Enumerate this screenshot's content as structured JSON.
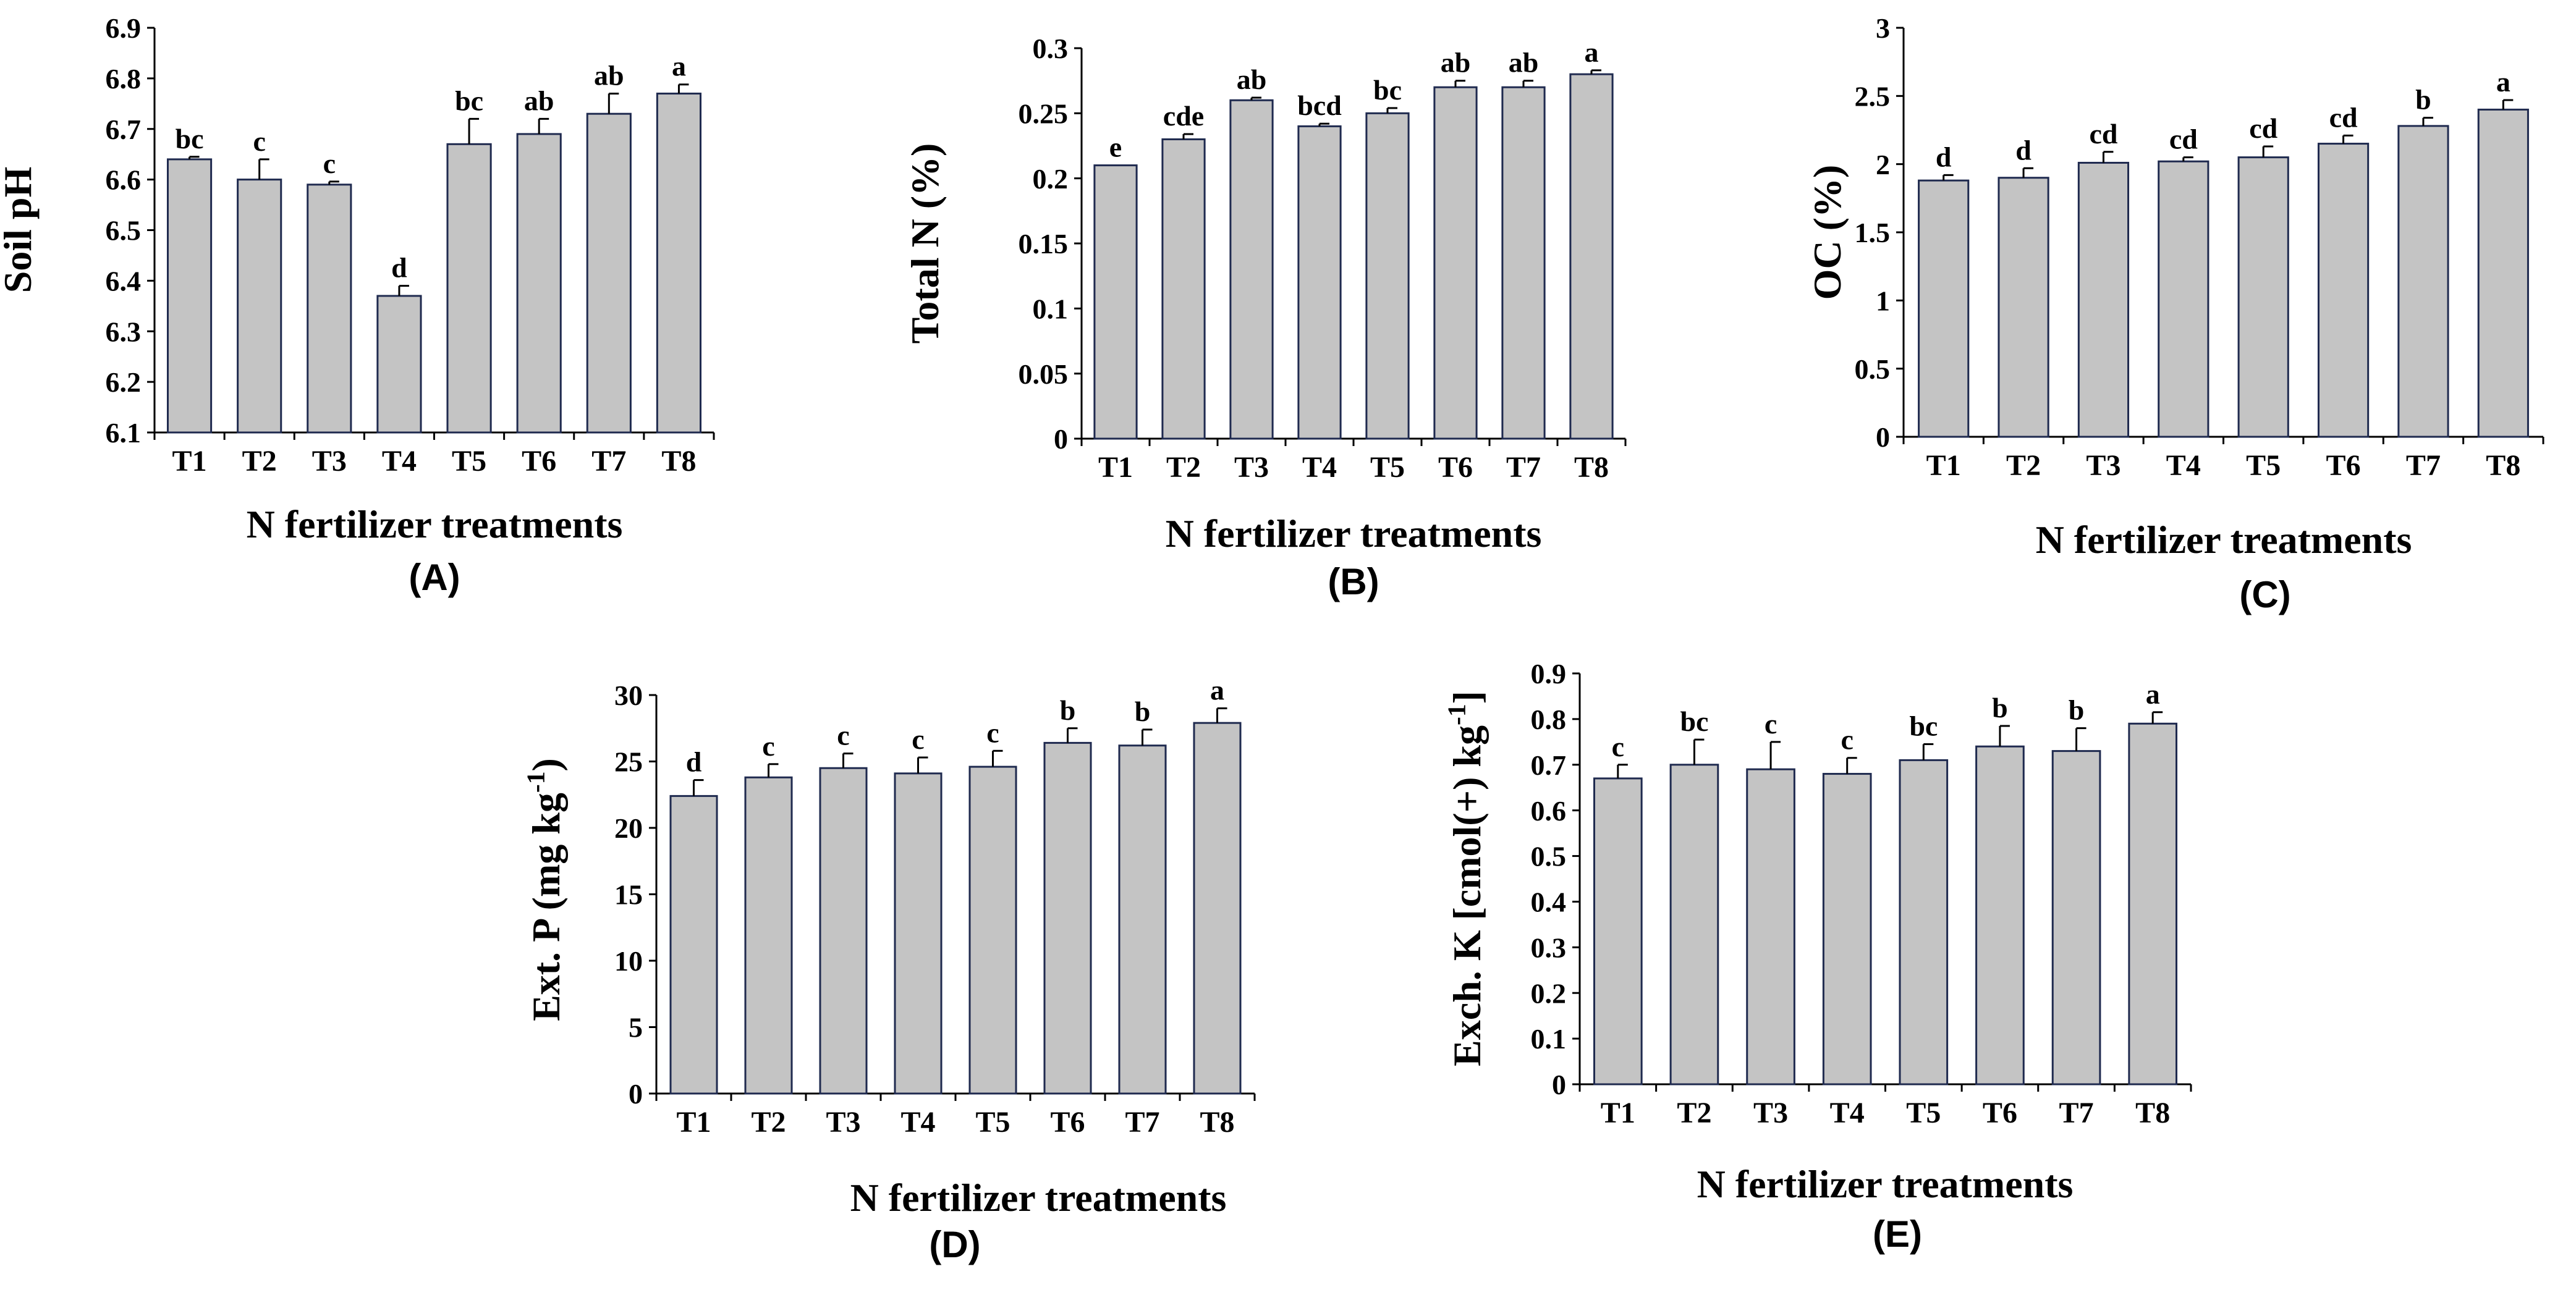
{
  "figure": {
    "bar_fill": "#c4c4c4",
    "bar_stroke": "#1f2a4f",
    "axis_color": "#000000"
  },
  "chart_data": [
    {
      "id": "A",
      "type": "bar",
      "panel_label": "(A)",
      "title": "",
      "xlabel": "N fertilizer treatments",
      "ylabel": "Soil pH",
      "ylabel_sup": "",
      "ylabel_after": "",
      "categories": [
        "T1",
        "T2",
        "T3",
        "T4",
        "T5",
        "T6",
        "T7",
        "T8"
      ],
      "values": [
        6.64,
        6.6,
        6.59,
        6.37,
        6.67,
        6.69,
        6.73,
        6.77
      ],
      "errors": [
        0.005,
        0.04,
        0.006,
        0.02,
        0.05,
        0.03,
        0.04,
        0.018
      ],
      "letters": [
        "bc",
        "c",
        "c",
        "d",
        "bc",
        "ab",
        "ab",
        "a"
      ],
      "ylim": [
        6.1,
        6.9
      ],
      "yticks": [
        "6.1",
        "6.2",
        "6.3",
        "6.4",
        "6.5",
        "6.6",
        "6.7",
        "6.8",
        "6.9"
      ]
    },
    {
      "id": "B",
      "type": "bar",
      "panel_label": "(B)",
      "title": "",
      "xlabel": "N fertilizer treatments",
      "ylabel": "Total N (%)",
      "ylabel_sup": "",
      "ylabel_after": "",
      "categories": [
        "T1",
        "T2",
        "T3",
        "T4",
        "T5",
        "T6",
        "T7",
        "T8"
      ],
      "values": [
        0.21,
        0.23,
        0.26,
        0.24,
        0.25,
        0.27,
        0.27,
        0.28
      ],
      "errors": [
        0.0,
        0.004,
        0.002,
        0.002,
        0.004,
        0.005,
        0.005,
        0.003
      ],
      "letters": [
        "e",
        "cde",
        "ab",
        "bcd",
        "bc",
        "ab",
        "ab",
        "a"
      ],
      "ylim": [
        0,
        0.3
      ],
      "yticks": [
        "0",
        "0.05",
        "0.1",
        "0.15",
        "0.2",
        "0.25",
        "0.3"
      ]
    },
    {
      "id": "C",
      "type": "bar",
      "panel_label": "(C)",
      "title": "",
      "xlabel": "N fertilizer treatments",
      "ylabel": "OC (%)",
      "ylabel_sup": "",
      "ylabel_after": "",
      "categories": [
        "T1",
        "T2",
        "T3",
        "T4",
        "T5",
        "T6",
        "T7",
        "T8"
      ],
      "values": [
        1.88,
        1.9,
        2.01,
        2.02,
        2.05,
        2.15,
        2.28,
        2.4
      ],
      "errors": [
        0.04,
        0.07,
        0.08,
        0.03,
        0.08,
        0.06,
        0.06,
        0.07
      ],
      "letters": [
        "d",
        "d",
        "cd",
        "cd",
        "cd",
        "cd",
        "b",
        "a"
      ],
      "ylim": [
        0,
        3
      ],
      "yticks": [
        "0",
        "0.5",
        "1",
        "1.5",
        "2",
        "2.5",
        "3"
      ]
    },
    {
      "id": "D",
      "type": "bar",
      "panel_label": "(D)",
      "title": "",
      "xlabel": "N fertilizer treatments",
      "ylabel": "Ext. P (mg kg",
      "ylabel_sup": "-1",
      "ylabel_after": ")",
      "categories": [
        "T1",
        "T2",
        "T3",
        "T4",
        "T5",
        "T6",
        "T7",
        "T8"
      ],
      "values": [
        22.4,
        23.8,
        24.5,
        24.1,
        24.6,
        26.4,
        26.2,
        27.9
      ],
      "errors": [
        1.2,
        1.0,
        1.1,
        1.2,
        1.2,
        1.1,
        1.2,
        1.1
      ],
      "letters": [
        "d",
        "c",
        "c",
        "c",
        "c",
        "b",
        "b",
        "a"
      ],
      "ylim": [
        0,
        30
      ],
      "yticks": [
        "0",
        "5",
        "10",
        "15",
        "20",
        "25",
        "30"
      ]
    },
    {
      "id": "E",
      "type": "bar",
      "panel_label": "(E)",
      "title": "",
      "xlabel": "N fertilizer treatments",
      "ylabel": "Exch. K [cmol(+) kg",
      "ylabel_sup": "-1",
      "ylabel_after": "]",
      "categories": [
        "T1",
        "T2",
        "T3",
        "T4",
        "T5",
        "T6",
        "T7",
        "T8"
      ],
      "values": [
        0.67,
        0.7,
        0.69,
        0.68,
        0.71,
        0.74,
        0.73,
        0.79
      ],
      "errors": [
        0.03,
        0.055,
        0.06,
        0.035,
        0.035,
        0.045,
        0.05,
        0.025
      ],
      "letters": [
        "c",
        "bc",
        "c",
        "c",
        "bc",
        "b",
        "b",
        "a"
      ],
      "ylim": [
        0,
        0.9
      ],
      "yticks": [
        "0",
        "0.1",
        "0.2",
        "0.3",
        "0.4",
        "0.5",
        "0.6",
        "0.7",
        "0.8",
        "0.9"
      ]
    }
  ]
}
